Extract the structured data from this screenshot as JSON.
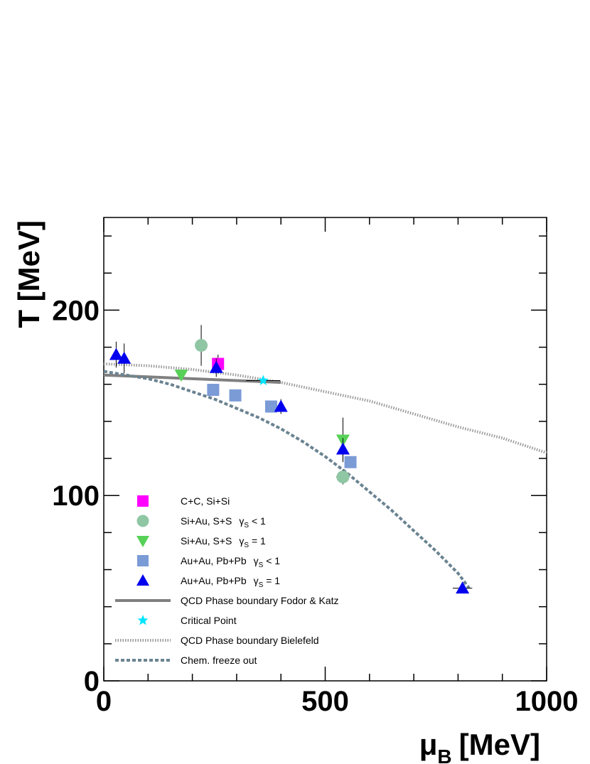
{
  "chart_data": {
    "type": "scatter",
    "xlabel": {
      "main": "μ",
      "sub": "B",
      "unit": "[MeV]"
    },
    "ylabel": "T [MeV]",
    "xlim": [
      0,
      1000
    ],
    "ylim": [
      0,
      250
    ],
    "x_ticks": [
      "0",
      "500",
      "1000"
    ],
    "y_ticks": [
      "0",
      "100",
      "200"
    ],
    "grid": false,
    "legend_placement": "bottom-left",
    "series": [
      {
        "key": "cc",
        "name": "C+C, Si+Si",
        "marker": "square",
        "color": "#ff00ff",
        "points": [
          {
            "x": 258,
            "y": 171,
            "yerr": 5
          }
        ]
      },
      {
        "key": "siau_lt",
        "name": "Si+Au, S+S",
        "gamma_label": "γ",
        "gamma_sub": "S",
        "gamma_rel": " < 1",
        "marker": "circle",
        "color": "#8fc6a4",
        "points": [
          {
            "x": 220,
            "y": 181,
            "yerr": 11
          },
          {
            "x": 540,
            "y": 110,
            "yerr": 4,
            "xerr": 15
          }
        ]
      },
      {
        "key": "siau_eq",
        "name": "Si+Au, S+S",
        "gamma_label": "γ",
        "gamma_sub": "S",
        "gamma_rel": " = 1",
        "marker": "tri-down",
        "color": "#57d157",
        "points": [
          {
            "x": 175,
            "y": 165
          },
          {
            "x": 540,
            "y": 130,
            "yerr": 12
          }
        ]
      },
      {
        "key": "aupb_lt",
        "name": "Au+Au, Pb+Pb",
        "gamma_label": "γ",
        "gamma_sub": "S",
        "gamma_rel": " < 1",
        "marker": "square",
        "color": "#7b9bd6",
        "points": [
          {
            "x": 247,
            "y": 157
          },
          {
            "x": 297,
            "y": 154
          },
          {
            "x": 378,
            "y": 148
          },
          {
            "x": 557,
            "y": 118
          }
        ]
      },
      {
        "key": "aupb_eq",
        "name": "Au+Au, Pb+Pb",
        "gamma_label": "γ",
        "gamma_sub": "S",
        "gamma_rel": " = 1",
        "marker": "tri-up",
        "color": "#0000ee",
        "points": [
          {
            "x": 28,
            "y": 176,
            "yerr": 7
          },
          {
            "x": 46,
            "y": 174,
            "yerr": 8
          },
          {
            "x": 254,
            "y": 169,
            "yerr": 5
          },
          {
            "x": 400,
            "y": 148,
            "yerr": 4
          },
          {
            "x": 540,
            "y": 125,
            "yerr": 6
          },
          {
            "x": 810,
            "y": 50,
            "xerr": 22
          }
        ]
      }
    ],
    "curves": [
      {
        "key": "fodor",
        "name": "QCD Phase boundary Fodor & Katz",
        "style": "solid",
        "color": "#808080",
        "points": [
          [
            0,
            165
          ],
          [
            100,
            164
          ],
          [
            200,
            163
          ],
          [
            300,
            162
          ],
          [
            400,
            161
          ]
        ]
      },
      {
        "key": "bielefeld",
        "name": "QCD Phase boundary Bielefeld",
        "style": "dotted",
        "color": "#999999",
        "points": [
          [
            0,
            171
          ],
          [
            100,
            170
          ],
          [
            200,
            168
          ],
          [
            300,
            165
          ],
          [
            400,
            161
          ],
          [
            500,
            156
          ],
          [
            600,
            151
          ],
          [
            700,
            144
          ],
          [
            800,
            137
          ],
          [
            900,
            131
          ],
          [
            1000,
            123
          ]
        ]
      }
    ],
    "critical_point": {
      "name": "Critical Point",
      "x": 360,
      "y": 162,
      "color": "#00e5ff"
    },
    "freeze_out": {
      "name": "Chem. freeze out",
      "style": "dashed",
      "color": "#6a8391",
      "points": [
        [
          0,
          167
        ],
        [
          50,
          165
        ],
        [
          100,
          163
        ],
        [
          150,
          160
        ],
        [
          200,
          156
        ],
        [
          250,
          152
        ],
        [
          300,
          147
        ],
        [
          350,
          142
        ],
        [
          400,
          136
        ],
        [
          450,
          129
        ],
        [
          500,
          121
        ],
        [
          550,
          112
        ],
        [
          600,
          102
        ],
        [
          650,
          92
        ],
        [
          700,
          81
        ],
        [
          750,
          70
        ],
        [
          800,
          58
        ],
        [
          825,
          50
        ]
      ]
    }
  }
}
